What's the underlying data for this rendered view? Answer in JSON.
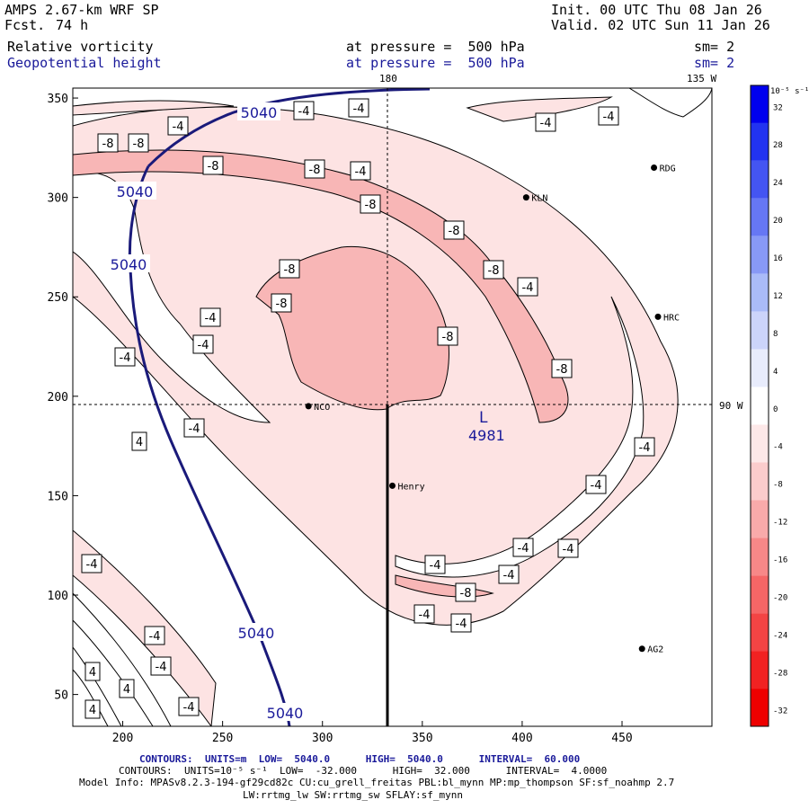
{
  "header": {
    "model": "AMPS 2.67-km WRF SP",
    "fcst_label": "Fcst.",
    "fcst_value": "74 h",
    "init": "Init. 00 UTC Thu 08 Jan 26",
    "valid": "Valid. 02 UTC Sun 11 Jan 26",
    "field1": "Relative vorticity",
    "field2": "Geopotential height",
    "pressure1": "at pressure =  500 hPa",
    "pressure2": "at pressure =  500 hPa",
    "sm1": "sm= 2",
    "sm2": "sm= 2"
  },
  "map": {
    "x_ticks": [
      200,
      250,
      300,
      350,
      400,
      450
    ],
    "y_ticks": [
      50,
      100,
      150,
      200,
      250,
      300,
      350
    ],
    "meridian_labels": {
      "top_180": "180",
      "top_135": "135 W",
      "right_90": "90 W"
    },
    "stations": [
      {
        "name": "RDG",
        "x": 466,
        "y": 315
      },
      {
        "name": "KLN",
        "x": 402,
        "y": 300
      },
      {
        "name": "HRC",
        "x": 468,
        "y": 240
      },
      {
        "name": "NCO",
        "x": 293,
        "y": 195
      },
      {
        "name": "Henry",
        "x": 335,
        "y": 155
      },
      {
        "name": "AG2",
        "x": 460,
        "y": 73
      }
    ],
    "low_center": {
      "label": "L",
      "value": "4981",
      "x": 385,
      "y": 190
    },
    "height_contour_label": "5040",
    "vorticity_labels": [
      "-4",
      "-8",
      "4"
    ]
  },
  "colorbar": {
    "unit": "10⁻⁵ s⁻¹",
    "ticks": [
      "32",
      "28",
      "24",
      "20",
      "16",
      "12",
      "8",
      "4",
      "0",
      "-4",
      "-8",
      "-12",
      "-16",
      "-20",
      "-24",
      "-28",
      "-32"
    ],
    "colors": [
      "#0000ee",
      "#2233f0",
      "#4455f2",
      "#6677f4",
      "#8899f6",
      "#aabbf8",
      "#ccd4fa",
      "#e8ecfc",
      "#ffffff",
      "#fde8e8",
      "#fbcccc",
      "#f9aaaa",
      "#f78888",
      "#f56666",
      "#f34444",
      "#f12222",
      "#ee0000"
    ]
  },
  "footer": {
    "line1_prefix": "CONTOURS:",
    "line1": "UNITS=m  LOW=  5040.0      HIGH=  5040.0      INTERVAL=  60.000",
    "line2_prefix": "CONTOURS:",
    "line2": "UNITS=10⁻⁵ s⁻¹  LOW=  -32.000      HIGH=  32.000      INTERVAL=  4.0000",
    "line3": "Model Info: MPASv8.2.3-194-gf29cd82c CU:cu_grell_freitas PBL:bl_mynn MP:mp_thompson SF:sf_noahmp 2.7",
    "line4": "LW:rrtmg_lw SW:rrtmg_sw SFLAY:sf_mynn"
  }
}
